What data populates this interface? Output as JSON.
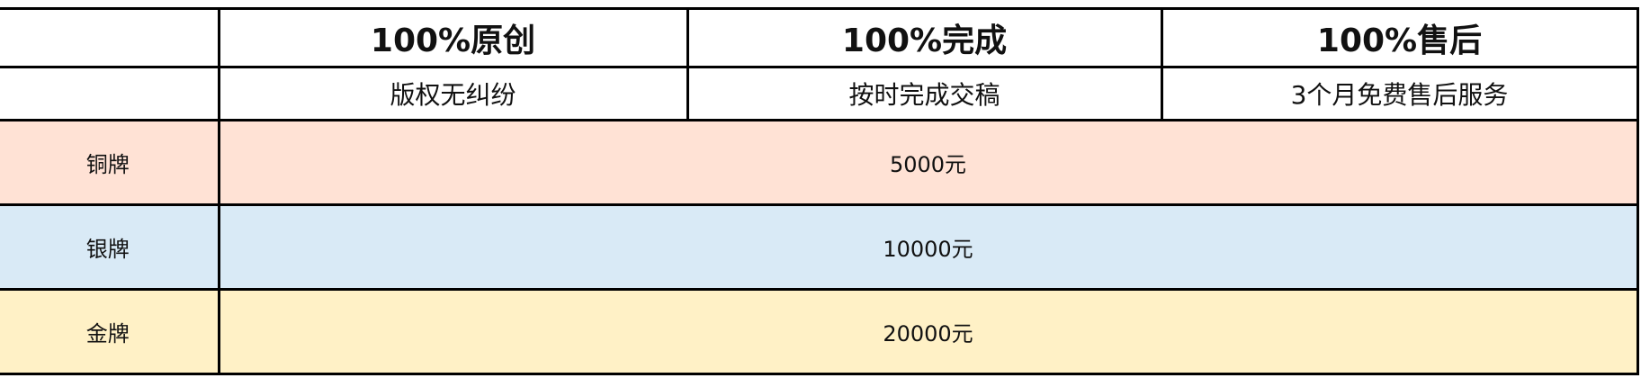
{
  "header": {
    "titles": [
      "100%原创",
      "100%完成",
      "100%售后"
    ],
    "subtitles": [
      "版权无纠纷",
      "按时完成交稿",
      "3个月免费售后服务"
    ]
  },
  "tiers": [
    {
      "name": "铜牌",
      "price": "5000元",
      "color": "#FFE2D5"
    },
    {
      "name": "银牌",
      "price": "10000元",
      "color": "#D9EAF6"
    },
    {
      "name": "金牌",
      "price": "20000元",
      "color": "#FFF1C6"
    }
  ]
}
